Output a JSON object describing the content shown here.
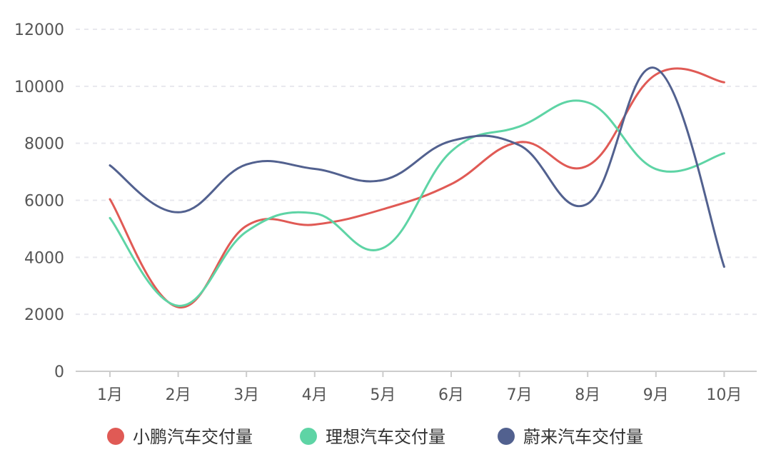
{
  "chart_data": {
    "type": "line",
    "smooth": true,
    "categories": [
      "1月",
      "2月",
      "3月",
      "4月",
      "5月",
      "6月",
      "7月",
      "8月",
      "9月",
      "10月"
    ],
    "y_ticks": [
      "0",
      "2000",
      "4000",
      "6000",
      "8000",
      "10000",
      "12000"
    ],
    "ylim": [
      0,
      12000
    ],
    "grid": "horizontal-dashed",
    "legend_position": "bottom",
    "series": [
      {
        "name": "小鹏汽车交付量",
        "color": "#e05a55",
        "values": [
          6037,
          2251,
          5102,
          5147,
          5686,
          6565,
          8040,
          7214,
          10412,
          10138
        ]
      },
      {
        "name": "理想汽车交付量",
        "color": "#5ed4a5",
        "values": [
          5379,
          2300,
          4900,
          5539,
          4323,
          7713,
          8589,
          9433,
          7094,
          7649
        ]
      },
      {
        "name": "蔚来汽车交付量",
        "color": "#52618f",
        "values": [
          7225,
          5578,
          7257,
          7102,
          6711,
          8083,
          7931,
          5880,
          10628,
          3667
        ]
      }
    ]
  }
}
